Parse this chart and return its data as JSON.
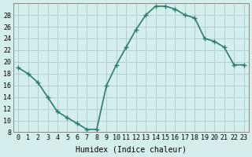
{
  "x": [
    0,
    1,
    2,
    3,
    4,
    5,
    6,
    7,
    8,
    9,
    10,
    11,
    12,
    13,
    14,
    15,
    16,
    17,
    18,
    19,
    20,
    21,
    22,
    23
  ],
  "y": [
    19,
    18,
    16.5,
    14,
    11.5,
    10.5,
    9.5,
    8.5,
    8.5,
    16,
    19.5,
    22.5,
    25.5,
    28,
    29.5,
    29.5,
    29,
    28,
    27.5,
    24,
    23.5,
    22.5,
    19.5,
    19.5
  ],
  "xlabel": "Humidex (Indice chaleur)",
  "ylim": [
    8,
    30
  ],
  "xlim": [
    -0.5,
    23.5
  ],
  "yticks": [
    8,
    10,
    12,
    14,
    16,
    18,
    20,
    22,
    24,
    26,
    28
  ],
  "xticks": [
    0,
    1,
    2,
    3,
    4,
    5,
    6,
    7,
    8,
    9,
    10,
    11,
    12,
    13,
    14,
    15,
    16,
    17,
    18,
    19,
    20,
    21,
    22,
    23
  ],
  "line_color": "#2e7d6e",
  "marker": "+",
  "bg_color": "#d4eeee",
  "grid_color": "#b0cfcf",
  "font_family": "monospace"
}
